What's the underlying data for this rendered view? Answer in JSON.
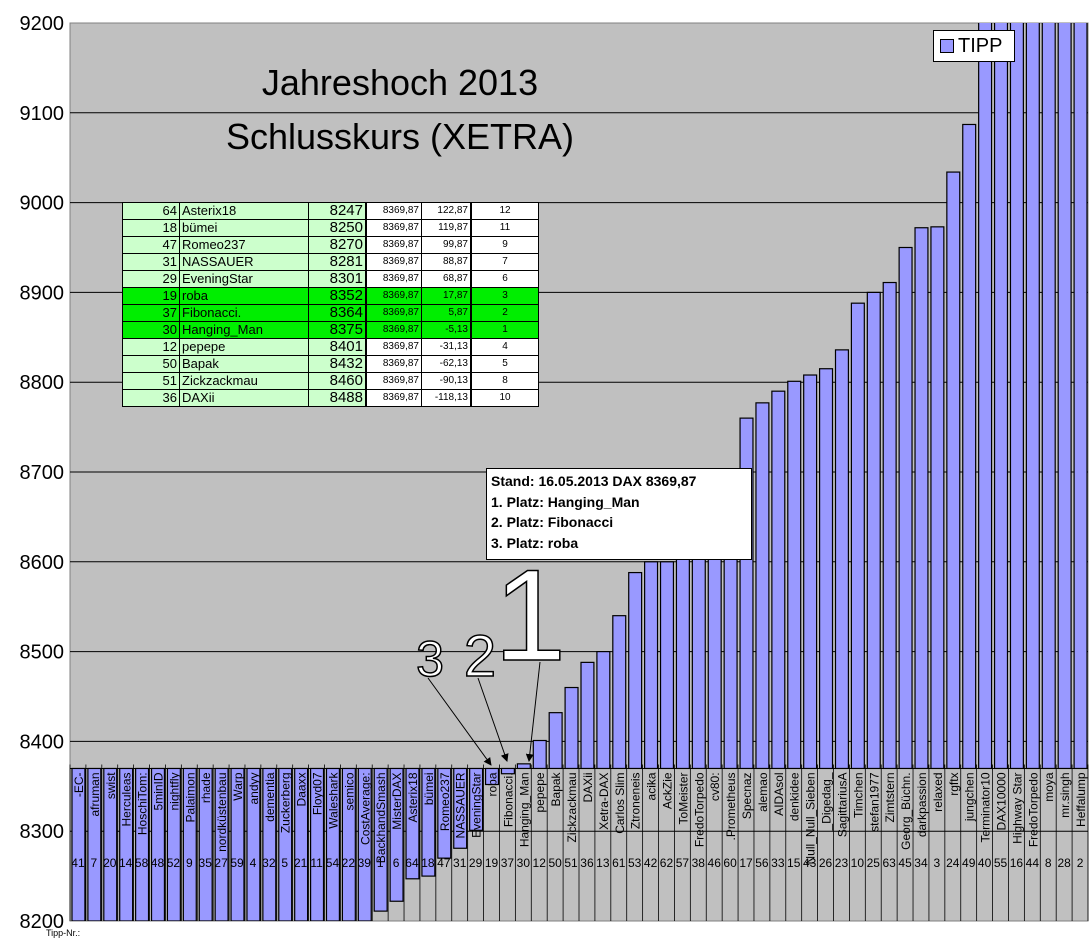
{
  "chart_data": {
    "type": "bar",
    "title": "Jahreshoch 2013",
    "subtitle": "Schlusskurs (XETRA)",
    "legend": {
      "entries": [
        "TIPP"
      ],
      "placement": "top-right"
    },
    "ylim": [
      8200,
      9200
    ],
    "yticks": [
      8200,
      8300,
      8400,
      8500,
      8600,
      8700,
      8800,
      8900,
      9000,
      9100,
      9200
    ],
    "grid": true,
    "baseline": 8369.87,
    "xaxis_label": "Tipp-Nr.:",
    "colors": {
      "bar": "#9999ff",
      "plot_bg": "#c0c0c0",
      "highlight": "#00ee00",
      "table_bg": "#ccffcc"
    },
    "categories": [
      "-EC-",
      "afruman",
      "swist",
      "Herculeas",
      "HoschiTom:",
      "5minID",
      "nightfly",
      "Palaimon",
      "rhade",
      "nordküstenbau",
      "Warp",
      "andyy",
      "dementia",
      "Zuckerberg",
      "Daaxx",
      "Floyd07",
      "Waleshark",
      "semico",
      "CostAverage:",
      "BackhandSmash",
      "MisterDAX",
      "Asterix18",
      "bümei",
      "Romeo237",
      "NASSAUER",
      "EveningStar",
      "roba",
      "Fibonacci.",
      "Hanging_Man",
      "pepepe",
      "Bapak",
      "Zickzackmau",
      "DAXii",
      "Xetra-DAX",
      "Carlos Slim",
      "Ztroneneis",
      "acika",
      "AckZie",
      "ToMeister",
      "FredoTorpedo",
      "cv80:",
      ".Prometheus",
      "Specnaz",
      "alemao",
      "AIDAsol",
      "denkidee",
      "Null_Null_Sieben",
      "_Digedag_",
      "SagittariusA",
      "Timchen",
      "stefan1977",
      "Zimtstern",
      "Georg_Büchn.",
      "darkpassion",
      "relaxed",
      "rgftx",
      "jungchen",
      "Terminator10",
      "DAX10000",
      "Highway Star",
      "FredoTorpedo",
      "moya",
      "mr.singh",
      "Heffalump"
    ],
    "tipp_nr": [
      "41",
      "7",
      "20",
      "14",
      "58",
      "48",
      "52",
      "9",
      "35",
      "27",
      "59",
      "4",
      "32",
      "5",
      "21",
      "11",
      "54",
      "22",
      "39",
      "1",
      "6",
      "64",
      "18",
      "47",
      "31",
      "29",
      "19",
      "37",
      "30",
      "12",
      "50",
      "51",
      "36",
      "13",
      "61",
      "53",
      "42",
      "62",
      "57",
      "38",
      "46",
      "60",
      "17",
      "56",
      "33",
      "15",
      "43",
      "26",
      "23",
      "10",
      "25",
      "63",
      "45",
      "34",
      "3",
      "24",
      "49",
      "40",
      "55",
      "16",
      "44",
      "8",
      "28",
      "2"
    ],
    "series": [
      {
        "name": "TIPP",
        "values": [
          8200,
          8200,
          8200,
          8200,
          8200,
          8200,
          8200,
          8200,
          8200,
          8200,
          8200,
          8200,
          8200,
          8200,
          8200,
          8200,
          8200,
          8200,
          8200,
          8211,
          8222,
          8247,
          8250,
          8270,
          8281,
          8301,
          8352,
          8364,
          8375,
          8401,
          8432,
          8460,
          8488,
          8500,
          8540,
          8588,
          8600,
          8600,
          8605,
          8610,
          8620,
          8620,
          8760,
          8777,
          8790,
          8801,
          8808,
          8815,
          8836,
          8888,
          8900,
          8911,
          8950,
          8972,
          8973,
          9034,
          9087,
          9250,
          9250,
          9250,
          9250,
          9250,
          9250,
          9250
        ]
      }
    ],
    "annotation": {
      "lines": [
        "Stand: 16.05.2013 DAX 8369,87",
        "1. Platz: Hanging_Man",
        "2. Platz: Fibonacci",
        "3. Platz: roba"
      ]
    },
    "podium_marks": [
      "1",
      "2",
      "3"
    ],
    "table": {
      "rows": [
        {
          "nr": "64",
          "name": "Asterix18",
          "tipp": "8247",
          "dax": "8369,87",
          "diff": "122,87",
          "rank": "12",
          "top": false
        },
        {
          "nr": "18",
          "name": "bümei",
          "tipp": "8250",
          "dax": "8369,87",
          "diff": "119,87",
          "rank": "11",
          "top": false
        },
        {
          "nr": "47",
          "name": "Romeo237",
          "tipp": "8270",
          "dax": "8369,87",
          "diff": "99,87",
          "rank": "9",
          "top": false
        },
        {
          "nr": "31",
          "name": "NASSAUER",
          "tipp": "8281",
          "dax": "8369,87",
          "diff": "88,87",
          "rank": "7",
          "top": false
        },
        {
          "nr": "29",
          "name": "EveningStar",
          "tipp": "8301",
          "dax": "8369,87",
          "diff": "68,87",
          "rank": "6",
          "top": false
        },
        {
          "nr": "19",
          "name": "roba",
          "tipp": "8352",
          "dax": "8369,87",
          "diff": "17,87",
          "rank": "3",
          "top": true
        },
        {
          "nr": "37",
          "name": "Fibonacci.",
          "tipp": "8364",
          "dax": "8369,87",
          "diff": "5,87",
          "rank": "2",
          "top": true
        },
        {
          "nr": "30",
          "name": "Hanging_Man",
          "tipp": "8375",
          "dax": "8369,87",
          "diff": "-5,13",
          "rank": "1",
          "top": true
        },
        {
          "nr": "12",
          "name": "pepepe",
          "tipp": "8401",
          "dax": "8369,87",
          "diff": "-31,13",
          "rank": "4",
          "top": false
        },
        {
          "nr": "50",
          "name": "Bapak",
          "tipp": "8432",
          "dax": "8369,87",
          "diff": "-62,13",
          "rank": "5",
          "top": false
        },
        {
          "nr": "51",
          "name": "Zickzackmau",
          "tipp": "8460",
          "dax": "8369,87",
          "diff": "-90,13",
          "rank": "8",
          "top": false
        },
        {
          "nr": "36",
          "name": "DAXii",
          "tipp": "8488",
          "dax": "8369,87",
          "diff": "-118,13",
          "rank": "10",
          "top": false
        }
      ]
    }
  }
}
